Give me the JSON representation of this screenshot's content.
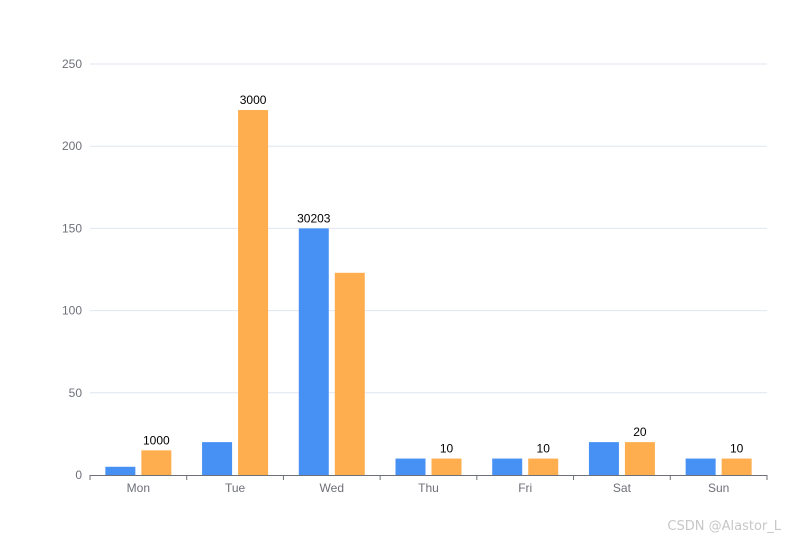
{
  "chart_data": {
    "type": "bar",
    "categories": [
      "Mon",
      "Tue",
      "Wed",
      "Thu",
      "Fri",
      "Sat",
      "Sun"
    ],
    "series": [
      {
        "values": [
          5,
          20,
          150,
          10,
          10,
          20,
          10
        ],
        "color": "#4891f4"
      },
      {
        "values": [
          15,
          222,
          123,
          10,
          10,
          20,
          10
        ],
        "color": "#ffae4f"
      }
    ],
    "data_labels": [
      "1000",
      "3000",
      "30203",
      "10",
      "10",
      "20",
      "10"
    ],
    "yticks": [
      0,
      50,
      100,
      150,
      200,
      250
    ],
    "ylim": [
      0,
      250
    ],
    "grid": true,
    "title": "",
    "xlabel": "",
    "ylabel": ""
  },
  "watermark": "CSDN @Alastor_L"
}
